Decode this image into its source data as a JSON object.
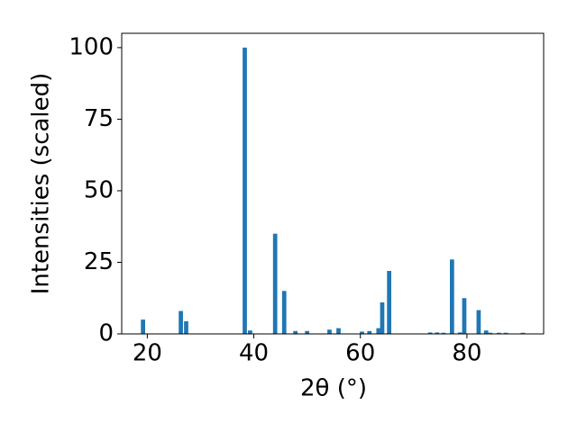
{
  "chart_data": {
    "type": "bar",
    "x_label": "2θ (°)",
    "y_label": "Intensities (scaled)",
    "x": [
      19.2,
      26.3,
      27.3,
      38.3,
      39.3,
      44.0,
      45.7,
      47.8,
      50.0,
      54.2,
      55.9,
      60.3,
      61.7,
      63.4,
      64.1,
      65.4,
      73.1,
      74.4,
      75.6,
      77.2,
      78.7,
      79.5,
      82.2,
      83.6,
      84.4,
      86.0,
      87.3,
      90.5
    ],
    "values": [
      5,
      8,
      4.4,
      100,
      1.2,
      35,
      15,
      1,
      1,
      1.5,
      2,
      0.8,
      1,
      2,
      11,
      22,
      0.5,
      0.5,
      0.4,
      26,
      0.5,
      12.5,
      8.3,
      1.2,
      0.4,
      0.4,
      0.4,
      0.4
    ],
    "color": "#1f77b4",
    "xlim": [
      15.2,
      94.4
    ],
    "ylim": [
      0,
      105
    ],
    "xticks": [
      20,
      40,
      60,
      80
    ],
    "yticks": [
      0,
      25,
      50,
      75,
      100
    ],
    "grid": false
  }
}
